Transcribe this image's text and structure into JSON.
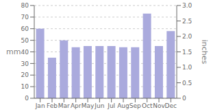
{
  "chart_data": {
    "type": "bar",
    "categories": [
      "Jan",
      "Feb",
      "Mar",
      "Apr",
      "May",
      "Jun",
      "Jul",
      "Aug",
      "Sep",
      "Oct",
      "Nov",
      "Dec"
    ],
    "values": [
      60,
      35,
      50,
      44,
      45,
      45,
      45,
      44,
      44,
      73,
      45,
      58
    ],
    "color": "#aaaadd",
    "ylim": [
      0,
      80
    ],
    "yticks": [
      0,
      10,
      20,
      30,
      40,
      50,
      60,
      70,
      80
    ],
    "ylabel": "mm",
    "y2lim": [
      0,
      3.0
    ],
    "y2ticks": [
      0,
      0.5,
      {
        "value": 1.0,
        "label": "1.0"
      },
      1.5,
      {
        "value": 2.0,
        "label": "2.0"
      },
      2.5,
      {
        "value": 3.0,
        "label": "3.0"
      }
    ],
    "y2label": "inches",
    "grid": true
  }
}
